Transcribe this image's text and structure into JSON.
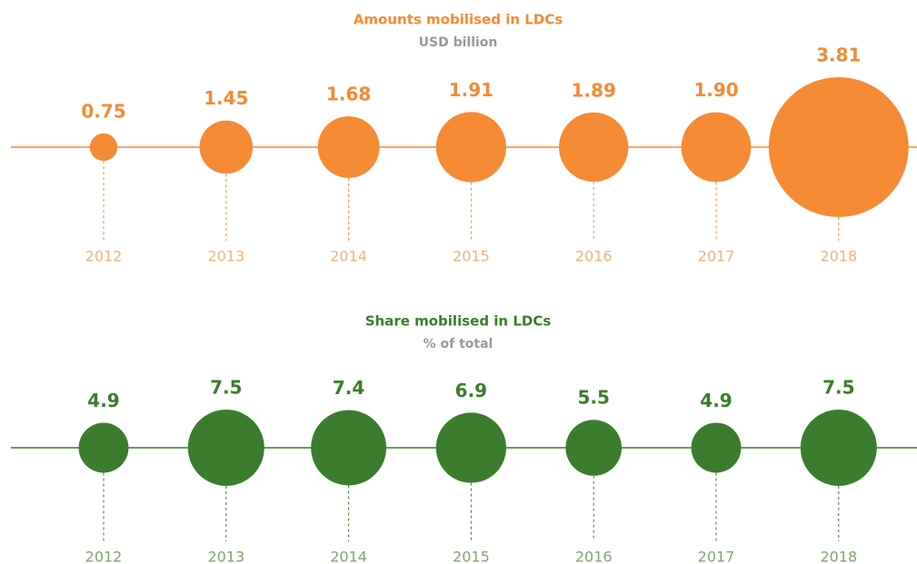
{
  "chart_data": [
    {
      "type": "bubble",
      "title": "Amounts mobilised in LDCs",
      "subtitle": "USD billion",
      "categories": [
        "2012",
        "2013",
        "2014",
        "2015",
        "2016",
        "2017",
        "2018"
      ],
      "values": [
        0.75,
        1.45,
        1.68,
        1.91,
        1.89,
        1.9,
        3.81
      ],
      "value_labels": [
        "0.75",
        "1.45",
        "1.68",
        "1.91",
        "1.89",
        "1.90",
        "3.81"
      ],
      "color": "#f58a35"
    },
    {
      "type": "bubble",
      "title": "Share mobilised in LDCs",
      "subtitle": "% of total",
      "categories": [
        "2012",
        "2013",
        "2014",
        "2015",
        "2016",
        "2017",
        "2018"
      ],
      "values": [
        4.9,
        7.5,
        7.4,
        6.9,
        5.5,
        4.9,
        7.5
      ],
      "color": "#3a7d2c"
    }
  ]
}
